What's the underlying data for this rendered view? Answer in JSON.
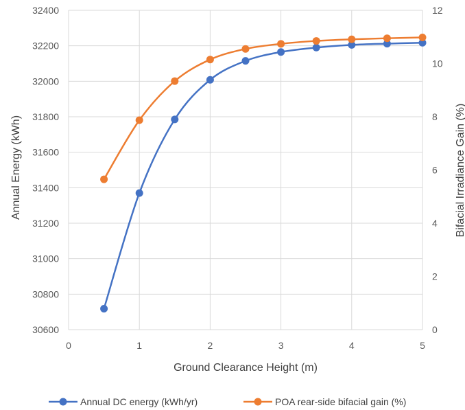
{
  "chart_data": {
    "type": "line",
    "title": "",
    "xlabel": "Ground Clearance Height (m)",
    "ylabel": "Annual Energy (kWh)",
    "y2label": "Bifacial Irradiance Gain (%)",
    "xlim": [
      0,
      5
    ],
    "ylim": [
      30600,
      32400
    ],
    "y2lim": [
      0,
      12
    ],
    "x_ticks": [
      "0",
      "1",
      "2",
      "3",
      "4",
      "5"
    ],
    "y_ticks": [
      "30600",
      "30800",
      "31000",
      "31200",
      "31400",
      "31600",
      "31800",
      "32000",
      "32200",
      "32400"
    ],
    "y2_ticks": [
      "0",
      "2",
      "4",
      "6",
      "8",
      "10",
      "12"
    ],
    "grid": true,
    "legend_position": "bottom",
    "x": [
      0.5,
      1.0,
      1.5,
      2.0,
      2.5,
      3.0,
      3.5,
      4.0,
      4.5,
      5.0
    ],
    "series": [
      {
        "name": "Annual DC energy (kWh/yr)",
        "axis": "left",
        "color": "#4472C4",
        "values": [
          30718,
          31370,
          31785,
          32008,
          32115,
          32165,
          32190,
          32205,
          32212,
          32217
        ]
      },
      {
        "name": "POA rear-side bifacial gain (%)",
        "axis": "right",
        "color": "#ED7D31",
        "values": [
          5.65,
          7.87,
          9.34,
          10.15,
          10.55,
          10.74,
          10.85,
          10.91,
          10.95,
          10.98
        ]
      }
    ]
  }
}
